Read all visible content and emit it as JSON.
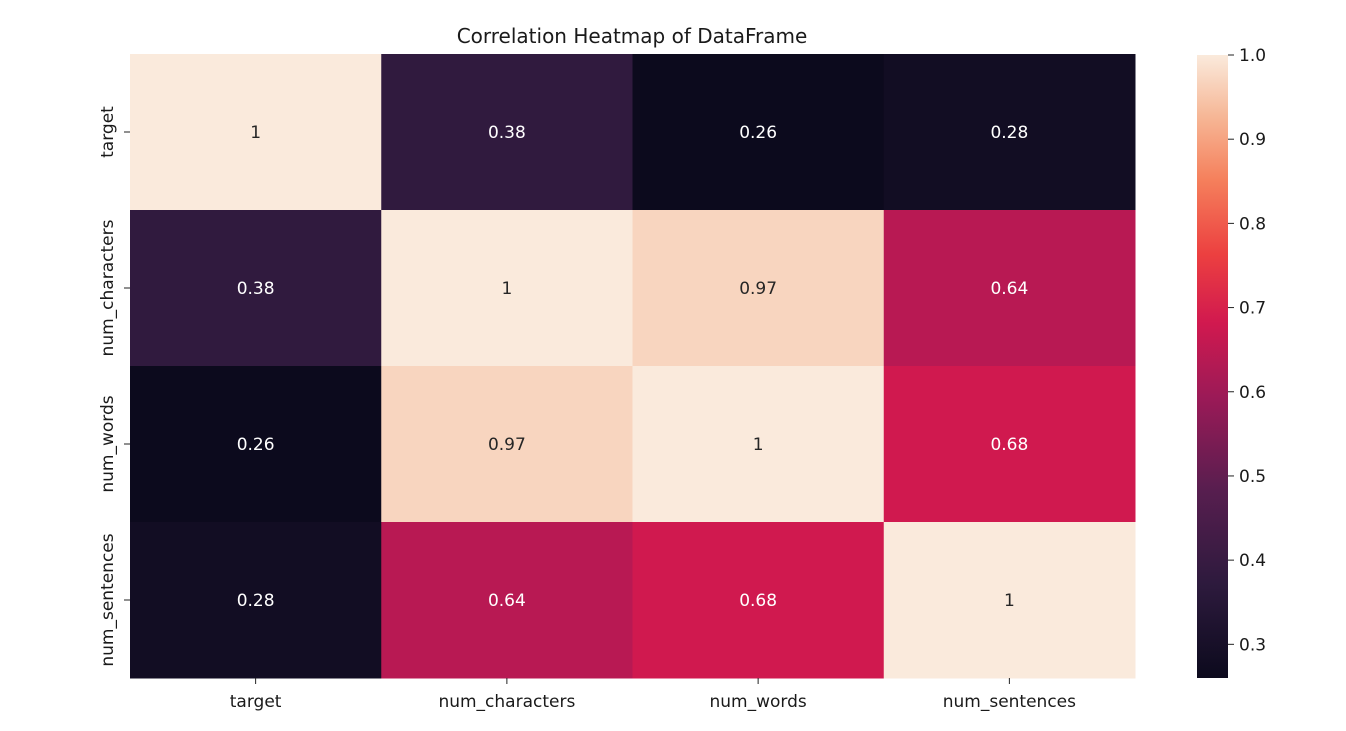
{
  "chart_data": {
    "type": "heatmap",
    "title": "Correlation Heatmap of DataFrame",
    "xlabel": "",
    "ylabel": "",
    "x_categories": [
      "target",
      "num_characters",
      "num_words",
      "num_sentences"
    ],
    "y_categories": [
      "target",
      "num_characters",
      "num_words",
      "num_sentences"
    ],
    "values": [
      [
        1,
        0.38,
        0.26,
        0.28
      ],
      [
        0.38,
        1,
        0.97,
        0.64
      ],
      [
        0.26,
        0.97,
        1,
        0.68
      ],
      [
        0.28,
        0.64,
        0.68,
        1
      ]
    ],
    "annotations": [
      [
        "1",
        "0.38",
        "0.26",
        "0.28"
      ],
      [
        "0.38",
        "1",
        "0.97",
        "0.64"
      ],
      [
        "0.26",
        "0.97",
        "1",
        "0.68"
      ],
      [
        "0.28",
        "0.64",
        "0.68",
        "1"
      ]
    ],
    "colormap": "rocket",
    "vmin": 0.26,
    "vmax": 1.0,
    "colorbar": {
      "ticks": [
        0.3,
        0.4,
        0.5,
        0.6,
        0.7,
        0.8,
        0.9,
        1.0
      ],
      "tick_labels": [
        "0.3",
        "0.4",
        "0.5",
        "0.6",
        "0.7",
        "0.8",
        "0.9",
        "1.0"
      ]
    }
  }
}
